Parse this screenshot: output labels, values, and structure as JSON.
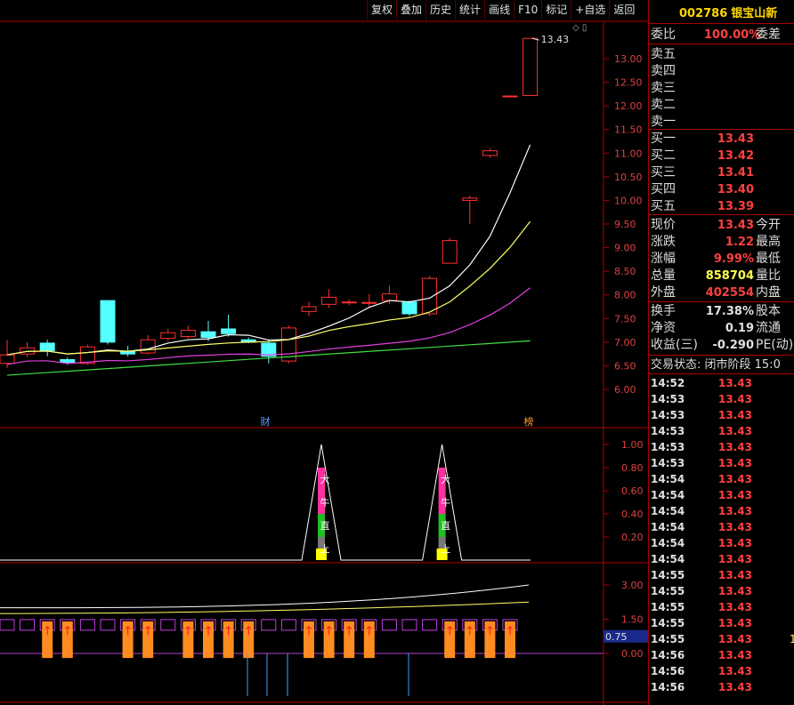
{
  "toolbar": [
    "复权",
    "叠加",
    "历史",
    "统计",
    "画线",
    "F10",
    "标记",
    "+自选",
    "返回"
  ],
  "top_icons": "◇ ▯",
  "quote": {
    "code": "002786",
    "name": "银宝山新",
    "weibi_label": "委比",
    "weibi_value": "100.00%",
    "weicha_label": "委差",
    "asks": [
      {
        "label": "卖五",
        "price": ""
      },
      {
        "label": "卖四",
        "price": ""
      },
      {
        "label": "卖三",
        "price": ""
      },
      {
        "label": "卖二",
        "price": ""
      },
      {
        "label": "卖一",
        "price": ""
      }
    ],
    "bids": [
      {
        "label": "买一",
        "price": "13.43"
      },
      {
        "label": "买二",
        "price": "13.42"
      },
      {
        "label": "买三",
        "price": "13.41"
      },
      {
        "label": "买四",
        "price": "13.40"
      },
      {
        "label": "买五",
        "price": "13.39"
      }
    ],
    "stats": [
      {
        "label": "现价",
        "value": "13.43",
        "color": "red",
        "rlabel": "今开"
      },
      {
        "label": "涨跌",
        "value": "1.22",
        "color": "red",
        "rlabel": "最高"
      },
      {
        "label": "涨幅",
        "value": "9.99%",
        "color": "red",
        "rlabel": "最低"
      },
      {
        "label": "总量",
        "value": "858704",
        "color": "yellow",
        "rlabel": "量比"
      },
      {
        "label": "外盘",
        "value": "402554",
        "color": "red",
        "rlabel": "内盘"
      }
    ],
    "stats2": [
      {
        "label": "换手",
        "value": "17.38%",
        "rlabel": "股本"
      },
      {
        "label": "净资",
        "value": "0.19",
        "rlabel": "流通"
      },
      {
        "label": "收益(三)",
        "value": "-0.290",
        "rlabel": "PE(动)"
      }
    ],
    "trade_status": "交易状态: 闭市阶段 15:0",
    "ticks": [
      {
        "time": "14:52",
        "price": "13.43",
        "vol": ""
      },
      {
        "time": "14:53",
        "price": "13.43",
        "vol": ""
      },
      {
        "time": "14:53",
        "price": "13.43",
        "vol": ""
      },
      {
        "time": "14:53",
        "price": "13.43",
        "vol": ""
      },
      {
        "time": "14:53",
        "price": "13.43",
        "vol": ""
      },
      {
        "time": "14:53",
        "price": "13.43",
        "vol": ""
      },
      {
        "time": "14:54",
        "price": "13.43",
        "vol": ""
      },
      {
        "time": "14:54",
        "price": "13.43",
        "vol": ""
      },
      {
        "time": "14:54",
        "price": "13.43",
        "vol": ""
      },
      {
        "time": "14:54",
        "price": "13.43",
        "vol": ""
      },
      {
        "time": "14:54",
        "price": "13.43",
        "vol": ""
      },
      {
        "time": "14:54",
        "price": "13.43",
        "vol": ""
      },
      {
        "time": "14:55",
        "price": "13.43",
        "vol": ""
      },
      {
        "time": "14:55",
        "price": "13.43",
        "vol": ""
      },
      {
        "time": "14:55",
        "price": "13.43",
        "vol": ""
      },
      {
        "time": "14:55",
        "price": "13.43",
        "vol": ""
      },
      {
        "time": "14:55",
        "price": "13.43",
        "vol": "1"
      },
      {
        "time": "14:56",
        "price": "13.43",
        "vol": ""
      },
      {
        "time": "14:56",
        "price": "13.43",
        "vol": ""
      },
      {
        "time": "14:56",
        "price": "13.43",
        "vol": ""
      }
    ]
  },
  "chart_data": [
    {
      "type": "candlestick",
      "price_axis_ticks": [
        "13.00",
        "12.50",
        "12.00",
        "11.50",
        "11.00",
        "10.50",
        "10.00",
        "9.50",
        "9.00",
        "8.50",
        "8.00",
        "7.50",
        "7.00",
        "6.50",
        "6.00"
      ],
      "high_marker": "13.43",
      "event_labels": [
        "财",
        "榜"
      ],
      "candles": [
        {
          "o": 6.55,
          "c": 6.73,
          "h": 7.05,
          "l": 6.45
        },
        {
          "o": 6.75,
          "c": 6.88,
          "h": 7.0,
          "l": 6.68
        },
        {
          "o": 6.98,
          "c": 6.82,
          "h": 7.05,
          "l": 6.7
        },
        {
          "o": 6.63,
          "c": 6.57,
          "h": 6.68,
          "l": 6.52
        },
        {
          "o": 6.55,
          "c": 6.9,
          "h": 6.95,
          "l": 6.52
        },
        {
          "o": 7.88,
          "c": 7.0,
          "h": 7.88,
          "l": 6.95
        },
        {
          "o": 6.8,
          "c": 6.75,
          "h": 6.92,
          "l": 6.7
        },
        {
          "o": 6.77,
          "c": 7.05,
          "h": 7.15,
          "l": 6.74
        },
        {
          "o": 7.08,
          "c": 7.2,
          "h": 7.28,
          "l": 7.02
        },
        {
          "o": 7.12,
          "c": 7.25,
          "h": 7.35,
          "l": 7.08
        },
        {
          "o": 7.22,
          "c": 7.1,
          "h": 7.45,
          "l": 7.02
        },
        {
          "o": 7.28,
          "c": 7.18,
          "h": 7.58,
          "l": 7.12
        },
        {
          "o": 7.05,
          "c": 7.0,
          "h": 7.1,
          "l": 6.98
        },
        {
          "o": 6.98,
          "c": 6.7,
          "h": 7.05,
          "l": 6.55
        },
        {
          "o": 6.6,
          "c": 7.3,
          "h": 7.35,
          "l": 6.55
        },
        {
          "o": 7.65,
          "c": 7.75,
          "h": 7.85,
          "l": 7.55
        },
        {
          "o": 7.8,
          "c": 7.95,
          "h": 8.12,
          "l": 7.72
        },
        {
          "o": 7.83,
          "c": 7.85,
          "h": 7.9,
          "l": 7.78
        },
        {
          "o": 7.83,
          "c": 7.84,
          "h": 8.02,
          "l": 7.72
        },
        {
          "o": 7.88,
          "c": 8.02,
          "h": 8.2,
          "l": 7.8
        },
        {
          "o": 7.85,
          "c": 7.6,
          "h": 7.88,
          "l": 7.55
        },
        {
          "o": 7.6,
          "c": 8.35,
          "h": 8.4,
          "l": 7.55
        },
        {
          "o": 8.67,
          "c": 9.15,
          "h": 9.2,
          "l": 8.67
        },
        {
          "o": 10.0,
          "c": 10.05,
          "h": 10.1,
          "l": 9.5
        },
        {
          "o": 10.95,
          "c": 11.05,
          "h": 11.1,
          "l": 10.9
        },
        {
          "o": 12.2,
          "c": 12.21,
          "h": 12.22,
          "l": 12.18
        },
        {
          "o": 12.22,
          "c": 13.43,
          "h": 13.43,
          "l": 12.22
        }
      ]
    },
    {
      "type": "line",
      "y_ticks": [
        "1.00",
        "0.80",
        "0.60",
        "0.40",
        "0.20"
      ],
      "labels": [
        "大",
        "牛",
        "直",
        "上"
      ],
      "peaks_at_candle": [
        15,
        21
      ]
    },
    {
      "type": "bar",
      "y_ticks": [
        "3.00",
        "1.50",
        "0.00"
      ],
      "current_value": "0.75",
      "arrow_glyph": "↑"
    }
  ]
}
